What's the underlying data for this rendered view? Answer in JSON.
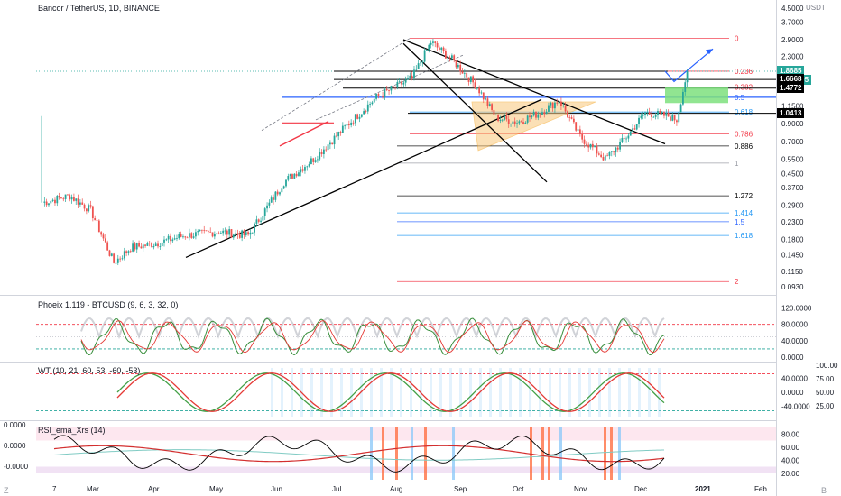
{
  "main": {
    "title": "Bancor / TetherUS, 1D, BINANCE",
    "currency": "USDT",
    "axis_ticks": [
      "4.5000",
      "3.7000",
      "2.9000",
      "2.3000",
      "1.8000",
      "1.4500",
      "1.1500",
      "0.9000",
      "0.7000",
      "0.5500",
      "0.4500",
      "0.3700",
      "0.2900",
      "0.2300",
      "0.1800",
      "0.1450",
      "0.1150",
      "0.0930"
    ],
    "price_tags": [
      {
        "text": "1.8685",
        "bg": "#26a69a",
        "fg": "#ffffff"
      },
      {
        "text": "19:36:05",
        "bg": "#26a69a",
        "fg": "#ffffff"
      },
      {
        "text": "1.6668",
        "bg": "#000000",
        "fg": "#ffffff"
      },
      {
        "text": "1.4772",
        "bg": "#000000",
        "fg": "#ffffff"
      },
      {
        "text": "1.0413",
        "bg": "#000000",
        "fg": "#ffffff"
      }
    ],
    "fib_labels": [
      {
        "text": "0",
        "color": "#f23645"
      },
      {
        "text": "0.236",
        "color": "#f23645"
      },
      {
        "text": "0.382",
        "color": "#f23645"
      },
      {
        "text": "0.5",
        "color": "#2962ff"
      },
      {
        "text": "0.618",
        "color": "#2196f3"
      },
      {
        "text": "0.786",
        "color": "#f23645"
      },
      {
        "text": "0.886",
        "color": "#000000"
      },
      {
        "text": "1",
        "color": "#9598a1"
      },
      {
        "text": "1.272",
        "color": "#000000"
      },
      {
        "text": "1.414",
        "color": "#2196f3"
      },
      {
        "text": "1.5",
        "color": "#2962ff"
      },
      {
        "text": "1.618",
        "color": "#2196f3"
      },
      {
        "text": "2",
        "color": "#f23645"
      }
    ]
  },
  "phoenix": {
    "title": "Phoeix 1.119 - BTCUSD (9, 6, 3, 32, 0)",
    "axis_ticks": [
      "120.0000",
      "80.0000",
      "40.0000",
      "0.0000"
    ]
  },
  "wt": {
    "title": "WT (10, 21, 60, 53, -60, -53)",
    "axis_ticks_left": [
      "40.0000",
      "0.0000",
      "-40.0000"
    ],
    "axis_ticks_right": [
      "100.00",
      "75.00",
      "50.00",
      "25.00"
    ]
  },
  "rsi": {
    "title": "RSI_ema_Xrs (14)",
    "left_ticks": [
      "0.0000",
      "0.0000",
      "-0.0000"
    ],
    "axis_ticks": [
      "80.00",
      "60.00",
      "40.00",
      "20.00"
    ]
  },
  "time_axis": {
    "labels": [
      "7",
      "Mar",
      "Apr",
      "May",
      "Jun",
      "Jul",
      "Aug",
      "Sep",
      "Oct",
      "Nov",
      "Dec",
      "2021",
      "Feb"
    ],
    "corner_left": "Z",
    "corner_right": "B"
  },
  "chart_data": {
    "type": "line",
    "title": "Bancor / TetherUS, 1D, BINANCE",
    "series": [
      {
        "values": [
          [
            "2020-02-07",
            0.3
          ],
          [
            "2020-02-20",
            0.33
          ],
          [
            "2020-03-01",
            0.27
          ],
          [
            "2020-03-12",
            0.13
          ],
          [
            "2020-03-20",
            0.16
          ],
          [
            "2020-04-01",
            0.17
          ],
          [
            "2020-04-15",
            0.19
          ],
          [
            "2020-05-01",
            0.2
          ],
          [
            "2020-05-15",
            0.19
          ],
          [
            "2020-06-01",
            0.4
          ],
          [
            "2020-06-15",
            0.55
          ],
          [
            "2020-07-01",
            0.88
          ],
          [
            "2020-07-15",
            1.3
          ],
          [
            "2020-08-01",
            1.7
          ],
          [
            "2020-08-10",
            2.8
          ],
          [
            "2020-08-20",
            2.2
          ],
          [
            "2020-09-01",
            1.5
          ],
          [
            "2020-09-10",
            0.98
          ],
          [
            "2020-09-20",
            0.92
          ],
          [
            "2020-10-01",
            1.05
          ],
          [
            "2020-10-10",
            1.25
          ],
          [
            "2020-10-20",
            0.75
          ],
          [
            "2020-11-01",
            0.55
          ],
          [
            "2020-11-10",
            0.72
          ],
          [
            "2020-11-20",
            1.05
          ],
          [
            "2020-12-01",
            1.0
          ],
          [
            "2020-12-05",
            0.95
          ],
          [
            "2020-12-10",
            1.87
          ]
        ]
      }
    ],
    "fib_levels": [
      {
        "ratio": "0",
        "price": 2.95
      },
      {
        "ratio": "0.236",
        "price": 1.87
      },
      {
        "ratio": "0.382",
        "price": 1.5
      },
      {
        "ratio": "0.5",
        "price": 1.3
      },
      {
        "ratio": "0.618",
        "price": 1.06
      },
      {
        "ratio": "0.786",
        "price": 0.78
      },
      {
        "ratio": "0.886",
        "price": 0.66
      },
      {
        "ratio": "1",
        "price": 0.52
      },
      {
        "ratio": "1.272",
        "price": 0.33
      },
      {
        "ratio": "1.414",
        "price": 0.26
      },
      {
        "ratio": "1.5",
        "price": 0.23
      },
      {
        "ratio": "1.618",
        "price": 0.19
      },
      {
        "ratio": "2",
        "price": 0.1
      }
    ],
    "yscale": "log",
    "ylim": [
      0.093,
      4.5
    ],
    "grid": false
  }
}
